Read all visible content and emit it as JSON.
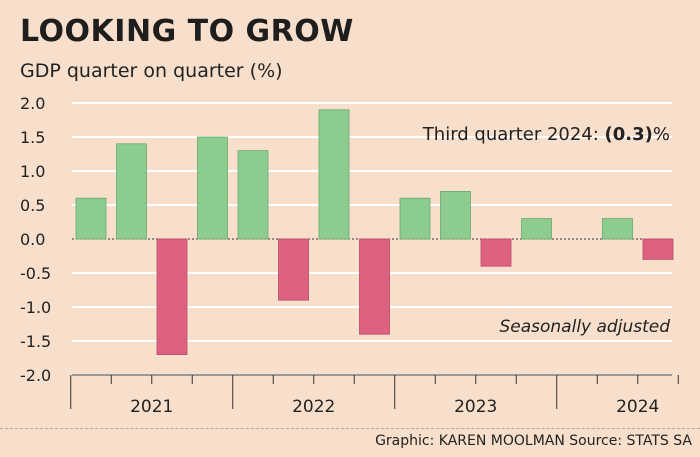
{
  "header": {
    "title": "LOOKING TO GROW",
    "subtitle": "GDP quarter on quarter (%)"
  },
  "annotations": {
    "highlight_prefix": "Third quarter 2024: ",
    "highlight_value": "(0.3)",
    "highlight_suffix": "%",
    "note": "Seasonally adjusted"
  },
  "footer": {
    "credit": "Graphic: KAREN MOOLMAN  Source: STATS SA"
  },
  "colors": {
    "positive": "#8ccc8f",
    "negative": "#dc6280",
    "grid": "#ffffff",
    "axis": "#333333"
  },
  "chart_data": {
    "type": "bar",
    "title": "LOOKING TO GROW",
    "ylabel": "GDP quarter on quarter (%)",
    "ylim": [
      -2.0,
      2.0
    ],
    "yticks": [
      2.0,
      1.5,
      1.0,
      0.5,
      0.0,
      -0.5,
      -1.0,
      -1.5,
      -2.0
    ],
    "ytick_labels": [
      "2.0",
      "1.5",
      "1.0",
      "0.5",
      "0.0",
      "-0.5",
      "-1.0",
      "-1.5",
      "-2.0"
    ],
    "years": [
      "2021",
      "2022",
      "2023",
      "2024"
    ],
    "categories": [
      "2021 Q1",
      "2021 Q2",
      "2021 Q3",
      "2021 Q4",
      "2022 Q1",
      "2022 Q2",
      "2022 Q3",
      "2022 Q4",
      "2023 Q1",
      "2023 Q2",
      "2023 Q3",
      "2023 Q4",
      "2024 Q1",
      "2024 Q2",
      "2024 Q3"
    ],
    "values": [
      0.6,
      1.4,
      -1.7,
      1.5,
      1.3,
      -0.9,
      1.9,
      -1.4,
      0.6,
      0.7,
      -0.4,
      0.3,
      0.0,
      0.3,
      -0.3
    ]
  }
}
